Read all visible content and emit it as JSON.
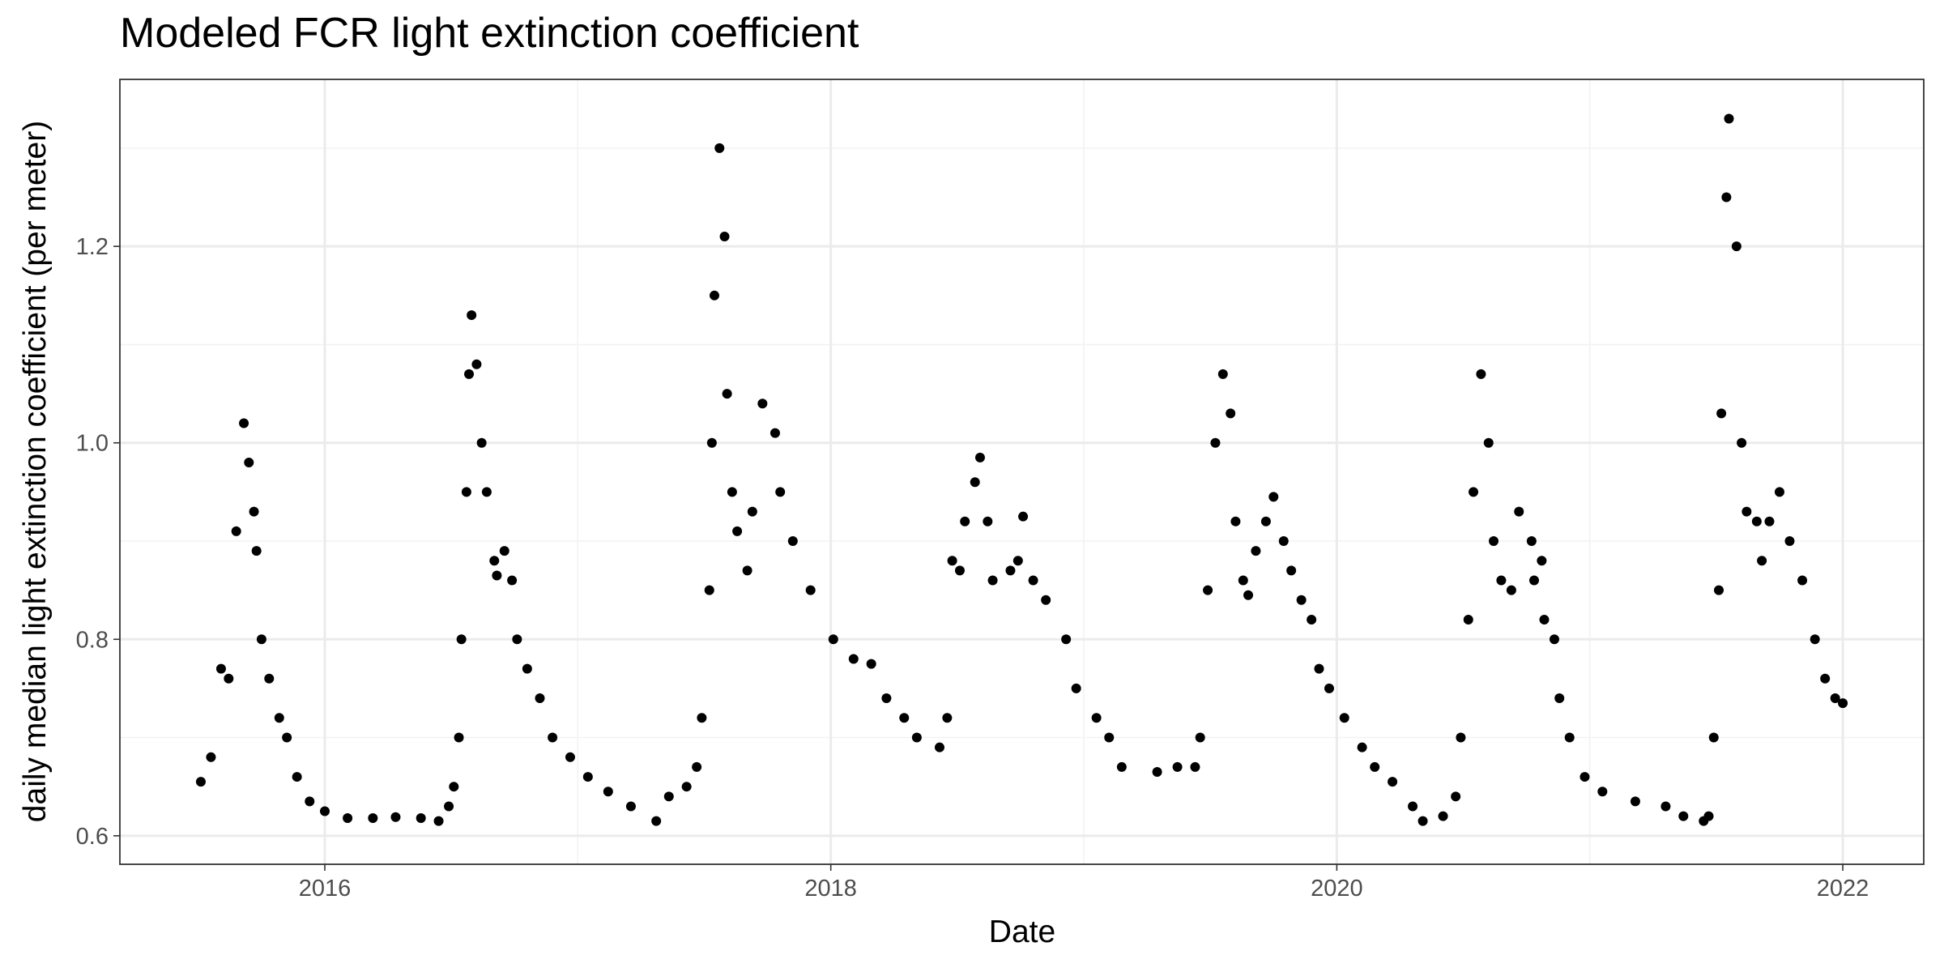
{
  "chart_data": {
    "type": "scatter",
    "title": "Modeled FCR light extinction coefficient",
    "x_label": "Date",
    "y_label": "daily median light extinction coefficient (per meter)",
    "color": "#000000",
    "grid": true,
    "xlim": [
      2015.19,
      2022.32
    ],
    "xticks": [
      2016,
      2018,
      2020,
      2022
    ],
    "ylim": [
      0.571,
      1.37
    ],
    "yticks": [
      0.6,
      0.8,
      {
        "value": 1,
        "label": "1.0"
      },
      1.2
    ],
    "x": [
      2015.51,
      2015.55,
      2015.59,
      2015.62,
      2015.65,
      2015.68,
      2015.7,
      2015.72,
      2015.73,
      2015.75,
      2015.78,
      2015.82,
      2015.85,
      2015.89,
      2015.94,
      2016.0,
      2016.09,
      2016.19,
      2016.28,
      2016.38,
      2016.45,
      2016.49,
      2016.51,
      2016.53,
      2016.54,
      2016.56,
      2016.57,
      2016.58,
      2016.6,
      2016.62,
      2016.64,
      2016.67,
      2016.68,
      2016.71,
      2016.74,
      2016.76,
      2016.8,
      2016.85,
      2016.9,
      2016.97,
      2017.04,
      2017.12,
      2017.21,
      2017.31,
      2017.36,
      2017.43,
      2017.47,
      2017.49,
      2017.52,
      2017.53,
      2017.54,
      2017.56,
      2017.58,
      2017.59,
      2017.61,
      2017.63,
      2017.67,
      2017.69,
      2017.73,
      2017.78,
      2017.8,
      2017.85,
      2017.92,
      2018.01,
      2018.09,
      2018.16,
      2018.22,
      2018.29,
      2018.34,
      2018.43,
      2018.46,
      2018.48,
      2018.51,
      2018.53,
      2018.57,
      2018.59,
      2018.62,
      2018.64,
      2018.71,
      2018.74,
      2018.76,
      2018.8,
      2018.85,
      2018.93,
      2018.97,
      2019.05,
      2019.1,
      2019.15,
      2019.29,
      2019.37,
      2019.44,
      2019.46,
      2019.49,
      2019.52,
      2019.55,
      2019.58,
      2019.6,
      2019.63,
      2019.65,
      2019.68,
      2019.72,
      2019.75,
      2019.79,
      2019.82,
      2019.86,
      2019.9,
      2019.93,
      2019.97,
      2020.03,
      2020.1,
      2020.15,
      2020.22,
      2020.3,
      2020.34,
      2020.42,
      2020.47,
      2020.49,
      2020.52,
      2020.54,
      2020.57,
      2020.6,
      2020.62,
      2020.65,
      2020.69,
      2020.72,
      2020.77,
      2020.78,
      2020.81,
      2020.82,
      2020.86,
      2020.88,
      2020.92,
      2020.98,
      2021.05,
      2021.18,
      2021.3,
      2021.37,
      2021.45,
      2021.47,
      2021.49,
      2021.51,
      2021.52,
      2021.54,
      2021.55,
      2021.58,
      2021.6,
      2021.62,
      2021.66,
      2021.68,
      2021.71,
      2021.75,
      2021.79,
      2021.84,
      2021.89,
      2021.93,
      2021.97,
      2022.0
    ],
    "values": [
      0.655,
      0.68,
      0.77,
      0.76,
      0.91,
      1.02,
      0.98,
      0.93,
      0.89,
      0.8,
      0.76,
      0.72,
      0.7,
      0.66,
      0.635,
      0.625,
      0.618,
      0.618,
      0.619,
      0.618,
      0.615,
      0.63,
      0.65,
      0.7,
      0.8,
      0.95,
      1.07,
      1.13,
      1.08,
      1.0,
      0.95,
      0.88,
      0.865,
      0.89,
      0.86,
      0.8,
      0.77,
      0.74,
      0.7,
      0.68,
      0.66,
      0.645,
      0.63,
      0.615,
      0.64,
      0.65,
      0.67,
      0.72,
      0.85,
      1.0,
      1.15,
      1.3,
      1.21,
      1.05,
      0.95,
      0.91,
      0.87,
      0.93,
      1.04,
      1.01,
      0.95,
      0.9,
      0.85,
      0.8,
      0.78,
      0.775,
      0.74,
      0.72,
      0.7,
      0.69,
      0.72,
      0.88,
      0.87,
      0.92,
      0.96,
      0.985,
      0.92,
      0.86,
      0.87,
      0.88,
      0.925,
      0.86,
      0.84,
      0.8,
      0.75,
      0.72,
      0.7,
      0.67,
      0.665,
      0.67,
      0.67,
      0.7,
      0.85,
      1.0,
      1.07,
      1.03,
      0.92,
      0.86,
      0.845,
      0.89,
      0.92,
      0.945,
      0.9,
      0.87,
      0.84,
      0.82,
      0.77,
      0.75,
      0.72,
      0.69,
      0.67,
      0.655,
      0.63,
      0.615,
      0.62,
      0.64,
      0.7,
      0.82,
      0.95,
      1.07,
      1.0,
      0.9,
      0.86,
      0.85,
      0.93,
      0.9,
      0.86,
      0.88,
      0.82,
      0.8,
      0.74,
      0.7,
      0.66,
      0.645,
      0.635,
      0.63,
      0.62,
      0.615,
      0.62,
      0.7,
      0.85,
      1.03,
      1.25,
      1.33,
      1.2,
      1.0,
      0.93,
      0.92,
      0.88,
      0.92,
      0.95,
      0.9,
      0.86,
      0.8,
      0.76,
      0.74,
      0.735
    ]
  }
}
